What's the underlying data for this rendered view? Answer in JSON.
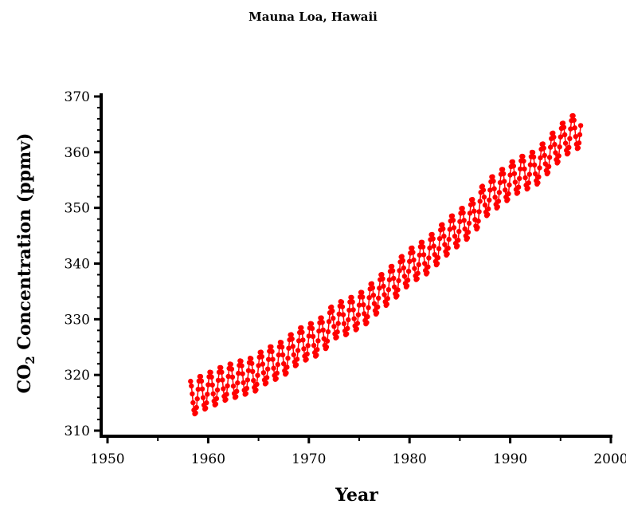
{
  "chart_data": {
    "type": "scatter",
    "title": "Mauna Loa, Hawaii",
    "xlabel": "Year",
    "ylabel_main": "CO",
    "ylabel_sub": "2",
    "ylabel_rest": " Concentration (ppmv)",
    "xlim": [
      1950,
      2000
    ],
    "ylim": [
      310,
      370
    ],
    "xticks": [
      1950,
      1960,
      1970,
      1980,
      1990,
      2000
    ],
    "yticks": [
      310,
      320,
      330,
      340,
      350,
      360,
      370
    ],
    "series_color": "#ff0000",
    "series": [
      {
        "annual_mean": [
          [
            1958,
            315.3
          ],
          [
            1959,
            316.0
          ],
          [
            1960,
            316.9
          ],
          [
            1961,
            317.6
          ],
          [
            1962,
            318.5
          ],
          [
            1963,
            319.0
          ],
          [
            1964,
            319.6
          ],
          [
            1965,
            320.0
          ],
          [
            1966,
            321.4
          ],
          [
            1967,
            322.2
          ],
          [
            1968,
            323.0
          ],
          [
            1969,
            324.6
          ],
          [
            1970,
            325.7
          ],
          [
            1971,
            326.3
          ],
          [
            1972,
            327.5
          ],
          [
            1973,
            329.7
          ],
          [
            1974,
            330.2
          ],
          [
            1975,
            331.1
          ],
          [
            1976,
            332.0
          ],
          [
            1977,
            333.8
          ],
          [
            1978,
            335.4
          ],
          [
            1979,
            336.8
          ],
          [
            1980,
            338.7
          ],
          [
            1981,
            340.1
          ],
          [
            1982,
            341.0
          ],
          [
            1983,
            342.6
          ],
          [
            1984,
            344.4
          ],
          [
            1985,
            345.9
          ],
          [
            1986,
            347.2
          ],
          [
            1987,
            348.9
          ],
          [
            1988,
            351.5
          ],
          [
            1989,
            352.9
          ],
          [
            1990,
            354.2
          ],
          [
            1991,
            355.6
          ],
          [
            1992,
            356.4
          ],
          [
            1993,
            357.1
          ],
          [
            1994,
            358.9
          ],
          [
            1995,
            360.9
          ],
          [
            1996,
            362.6
          ],
          [
            1997,
            363.8
          ]
        ],
        "seasonal_amplitude": 3.2
      }
    ]
  }
}
